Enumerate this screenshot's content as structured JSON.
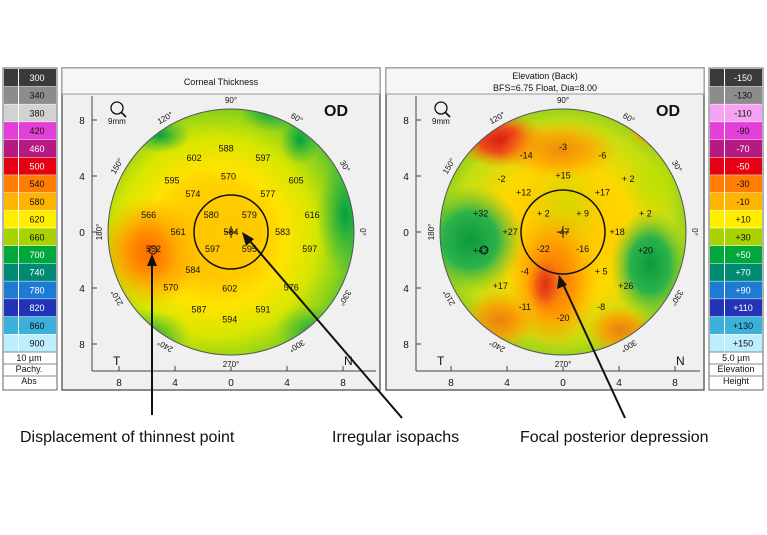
{
  "left_panel": {
    "title": "Corneal Thickness",
    "eye": "OD",
    "zoom_label": "9mm",
    "y_ticks": [
      "8",
      "4",
      "0",
      "4",
      "8"
    ],
    "x_ticks": [
      "8",
      "4",
      "0",
      "4",
      "8"
    ],
    "deg_labels": [
      "90°",
      "60°",
      "30°",
      "0°",
      "330°",
      "300°",
      "270°",
      "240°",
      "210°",
      "180°",
      "150°",
      "120°"
    ],
    "side_left": "T",
    "side_right": "N",
    "values": [
      {
        "v": "588",
        "dx": -0.04,
        "dy": -0.68
      },
      {
        "v": "602",
        "dx": -0.3,
        "dy": -0.6
      },
      {
        "v": "597",
        "dx": 0.26,
        "dy": -0.6
      },
      {
        "v": "570",
        "dx": -0.02,
        "dy": -0.45
      },
      {
        "v": "595",
        "dx": -0.48,
        "dy": -0.42
      },
      {
        "v": "605",
        "dx": 0.53,
        "dy": -0.42
      },
      {
        "v": "574",
        "dx": -0.31,
        "dy": -0.31
      },
      {
        "v": "577",
        "dx": 0.3,
        "dy": -0.31
      },
      {
        "v": "580",
        "dx": -0.16,
        "dy": -0.14
      },
      {
        "v": "579",
        "dx": 0.15,
        "dy": -0.14
      },
      {
        "v": "566",
        "dx": -0.67,
        "dy": -0.14
      },
      {
        "v": "616",
        "dx": 0.66,
        "dy": -0.14
      },
      {
        "v": "561",
        "dx": -0.43,
        "dy": 0.0
      },
      {
        "v": "584",
        "dx": 0.0,
        "dy": 0.0
      },
      {
        "v": "583",
        "dx": 0.42,
        "dy": 0.0
      },
      {
        "v": "552",
        "dx": -0.63,
        "dy": 0.14
      },
      {
        "v": "597",
        "dx": -0.15,
        "dy": 0.14
      },
      {
        "v": "595",
        "dx": 0.15,
        "dy": 0.14
      },
      {
        "v": "597",
        "dx": 0.64,
        "dy": 0.14
      },
      {
        "v": "584",
        "dx": -0.31,
        "dy": 0.31
      },
      {
        "v": "570",
        "dx": -0.49,
        "dy": 0.45
      },
      {
        "v": "602",
        "dx": -0.01,
        "dy": 0.46
      },
      {
        "v": "576",
        "dx": 0.49,
        "dy": 0.45
      },
      {
        "v": "587",
        "dx": -0.26,
        "dy": 0.63
      },
      {
        "v": "591",
        "dx": 0.26,
        "dy": 0.63
      },
      {
        "v": "594",
        "dx": -0.01,
        "dy": 0.71
      }
    ],
    "legend_values": [
      "300",
      "340",
      "380",
      "420",
      "460",
      "500",
      "540",
      "580",
      "620",
      "660",
      "700",
      "740",
      "780",
      "820",
      "860",
      "900"
    ],
    "legend_colors": [
      "#3a3a3a",
      "#8c8c8c",
      "#d2d2d2",
      "#e43fd8",
      "#b61a82",
      "#e60014",
      "#ff7d00",
      "#ffb500",
      "#ffee00",
      "#a8d200",
      "#00a83c",
      "#008a72",
      "#1d7bd4",
      "#2233b8",
      "#3bb0d9",
      "#bdeeff"
    ],
    "legend_foot": [
      "10 µm",
      "Pachy.",
      "Abs"
    ]
  },
  "right_panel": {
    "title": "Elevation (Back)",
    "subtitle": "BFS=6.75 Float, Dia=8.00",
    "eye": "OD",
    "zoom_label": "9mm",
    "y_ticks": [
      "8",
      "4",
      "0",
      "4",
      "8"
    ],
    "x_ticks": [
      "8",
      "4",
      "0",
      "4",
      "8"
    ],
    "deg_labels": [
      "90°",
      "60°",
      "30°",
      "0°",
      "330°",
      "300°",
      "270°",
      "240°",
      "210°",
      "180°",
      "150°",
      "120°"
    ],
    "side_left": "T",
    "side_right": "N",
    "values": [
      {
        "v": "-3",
        "dx": 0.0,
        "dy": -0.69
      },
      {
        "v": "-14",
        "dx": -0.3,
        "dy": -0.62
      },
      {
        "v": "-6",
        "dx": 0.32,
        "dy": -0.62
      },
      {
        "v": "+15",
        "dx": 0.0,
        "dy": -0.46
      },
      {
        "v": "-2",
        "dx": -0.5,
        "dy": -0.43
      },
      {
        "v": "+ 2",
        "dx": 0.53,
        "dy": -0.43
      },
      {
        "v": "+12",
        "dx": -0.32,
        "dy": -0.32
      },
      {
        "v": "+17",
        "dx": 0.32,
        "dy": -0.32
      },
      {
        "v": "+ 2",
        "dx": -0.16,
        "dy": -0.15
      },
      {
        "v": "+ 9",
        "dx": 0.16,
        "dy": -0.15
      },
      {
        "v": "+32",
        "dx": -0.67,
        "dy": -0.15
      },
      {
        "v": "+ 2",
        "dx": 0.67,
        "dy": -0.15
      },
      {
        "v": "+27",
        "dx": -0.43,
        "dy": 0.0
      },
      {
        "v": "-47",
        "dx": 0.0,
        "dy": 0.0
      },
      {
        "v": "+18",
        "dx": 0.44,
        "dy": 0.0
      },
      {
        "v": "+43",
        "dx": -0.67,
        "dy": 0.15
      },
      {
        "v": "-22",
        "dx": -0.16,
        "dy": 0.14
      },
      {
        "v": "-16",
        "dx": 0.16,
        "dy": 0.14
      },
      {
        "v": "+20",
        "dx": 0.67,
        "dy": 0.15
      },
      {
        "v": "-4",
        "dx": -0.31,
        "dy": 0.32
      },
      {
        "v": "+ 5",
        "dx": 0.31,
        "dy": 0.32
      },
      {
        "v": "+17",
        "dx": -0.51,
        "dy": 0.44
      },
      {
        "v": "+26",
        "dx": 0.51,
        "dy": 0.44
      },
      {
        "v": "-11",
        "dx": -0.31,
        "dy": 0.61
      },
      {
        "v": "-8",
        "dx": 0.31,
        "dy": 0.61
      },
      {
        "v": "-20",
        "dx": 0.0,
        "dy": 0.7
      }
    ],
    "legend_values": [
      "-150",
      "-130",
      "-110",
      "-90",
      "-70",
      "-50",
      "-30",
      "-10",
      "+10",
      "+30",
      "+50",
      "+70",
      "+90",
      "+110",
      "+130",
      "+150"
    ],
    "legend_colors": [
      "#3a3a3a",
      "#8c8c8c",
      "#f5a2f0",
      "#e43fd8",
      "#b61a82",
      "#e60014",
      "#ff7d00",
      "#ffb500",
      "#ffee00",
      "#a8d200",
      "#00a83c",
      "#008a72",
      "#1d7bd4",
      "#2233b8",
      "#3bb0d9",
      "#bdeeff"
    ],
    "legend_foot": [
      "5.0 µm",
      "Elevation",
      "Height"
    ]
  },
  "annotations": {
    "label_1": "Displacement of thinnest point",
    "label_2": "Irregular isopachs",
    "label_3": "Focal posterior depression"
  },
  "colors": {
    "panel_bg": "#f0f0f0",
    "map_red": "#e53a1a",
    "map_orange": "#ff8c00",
    "map_yellow": "#ffe100",
    "map_green": "#22b14c",
    "map_dark_green": "#00913a"
  }
}
